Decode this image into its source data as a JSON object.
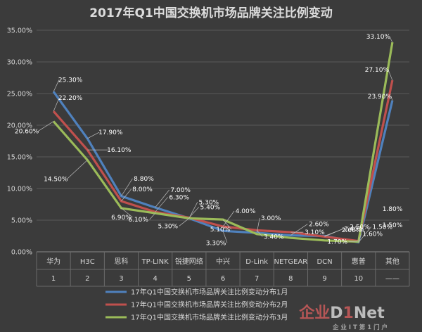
{
  "chart_data": {
    "type": "line",
    "title": "2017年Q1中国交换机市场品牌关注比例变动",
    "categories": [
      "华为",
      "H3C",
      "思科",
      "TP-LINK",
      "锐捷网络",
      "中兴",
      "D-Link",
      "NETGEAR",
      "DCN",
      "惠普",
      "其他"
    ],
    "category_index": [
      "1",
      "2",
      "3",
      "4",
      "5",
      "6",
      "7",
      "8",
      "9",
      "10",
      "——"
    ],
    "y_ticks": [
      "0.00%",
      "5.00%",
      "10.00%",
      "15.00%",
      "20.00%",
      "25.00%",
      "30.00%",
      "35.00%"
    ],
    "ylim": [
      0,
      35
    ],
    "grid": true,
    "legend_position": "bottom",
    "series": [
      {
        "name": "17年Q1中国交换机市场品牌关注比例变动分布1月",
        "color": "#4f81bd",
        "values": [
          25.3,
          17.9,
          8.8,
          7.0,
          5.3,
          3.3,
          3.0,
          2.6,
          2.5,
          1.5,
          23.9
        ],
        "labels": [
          "25.30%",
          "17.90%",
          "8.80%",
          "7.00%",
          "5.30%",
          "3.30%",
          "3.00%",
          "2.60%",
          "2.50%",
          "1.50%",
          "23.90%"
        ]
      },
      {
        "name": "17年Q1中国交换机市场品牌关注比例变动分布2月",
        "color": "#c0504d",
        "values": [
          22.2,
          16.1,
          8.0,
          6.3,
          5.4,
          4.0,
          3.4,
          3.1,
          2.4,
          1.7,
          27.1
        ],
        "labels": [
          "22.20%",
          "16.10%",
          "8.00%",
          "6.30%",
          "5.40%",
          "4.00%",
          "3.40%",
          "3.10%",
          "2.40%",
          "1.70%",
          "27.10%"
        ]
      },
      {
        "name": "17年Q1中国交换机市场品牌关注比例变动分布3月",
        "color": "#9bbb59",
        "values": [
          20.6,
          14.5,
          6.9,
          6.1,
          5.3,
          5.1,
          2.8,
          2.2,
          1.8,
          1.6,
          33.1
        ],
        "labels": [
          "20.60%",
          "14.50%",
          "6.90%",
          "6.10%",
          "5.30%",
          "5.10%",
          "",
          "",
          "",
          "1.60%",
          "33.10%"
        ],
        "extra_labels": [
          "2.60%",
          "1.80%",
          "1.50%"
        ]
      }
    ]
  },
  "watermark": {
    "logo": "企业D1Net",
    "sub": "企 业 I T 第 1 门 户"
  }
}
